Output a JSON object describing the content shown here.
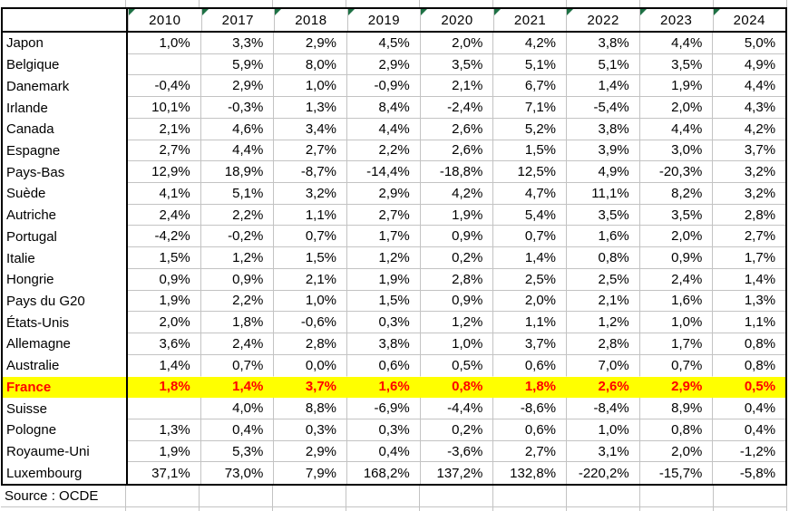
{
  "table": {
    "corner": "",
    "years": [
      "2010",
      "2017",
      "2018",
      "2019",
      "2020",
      "2021",
      "2022",
      "2023",
      "2024"
    ],
    "rows": [
      {
        "country": "Japon",
        "highlight": false,
        "values": [
          "1,0%",
          "3,3%",
          "2,9%",
          "4,5%",
          "2,0%",
          "4,2%",
          "3,8%",
          "4,4%",
          "5,0%"
        ]
      },
      {
        "country": "Belgique",
        "highlight": false,
        "values": [
          "",
          "5,9%",
          "8,0%",
          "2,9%",
          "3,5%",
          "5,1%",
          "5,1%",
          "3,5%",
          "4,9%"
        ]
      },
      {
        "country": "Danemark",
        "highlight": false,
        "values": [
          "-0,4%",
          "2,9%",
          "1,0%",
          "-0,9%",
          "2,1%",
          "6,7%",
          "1,4%",
          "1,9%",
          "4,4%"
        ]
      },
      {
        "country": "Irlande",
        "highlight": false,
        "values": [
          "10,1%",
          "-0,3%",
          "1,3%",
          "8,4%",
          "-2,4%",
          "7,1%",
          "-5,4%",
          "2,0%",
          "4,3%"
        ]
      },
      {
        "country": "Canada",
        "highlight": false,
        "values": [
          "2,1%",
          "4,6%",
          "3,4%",
          "4,4%",
          "2,6%",
          "5,2%",
          "3,8%",
          "4,4%",
          "4,2%"
        ]
      },
      {
        "country": "Espagne",
        "highlight": false,
        "values": [
          "2,7%",
          "4,4%",
          "2,7%",
          "2,2%",
          "2,6%",
          "1,5%",
          "3,9%",
          "3,0%",
          "3,7%"
        ]
      },
      {
        "country": "Pays-Bas",
        "highlight": false,
        "values": [
          "12,9%",
          "18,9%",
          "-8,7%",
          "-14,4%",
          "-18,8%",
          "12,5%",
          "4,9%",
          "-20,3%",
          "3,2%"
        ]
      },
      {
        "country": "Suède",
        "highlight": false,
        "values": [
          "4,1%",
          "5,1%",
          "3,2%",
          "2,9%",
          "4,2%",
          "4,7%",
          "11,1%",
          "8,2%",
          "3,2%"
        ]
      },
      {
        "country": "Autriche",
        "highlight": false,
        "values": [
          "2,4%",
          "2,2%",
          "1,1%",
          "2,7%",
          "1,9%",
          "5,4%",
          "3,5%",
          "3,5%",
          "2,8%"
        ]
      },
      {
        "country": "Portugal",
        "highlight": false,
        "values": [
          "-4,2%",
          "-0,2%",
          "0,7%",
          "1,7%",
          "0,9%",
          "0,7%",
          "1,6%",
          "2,0%",
          "2,7%"
        ]
      },
      {
        "country": "Italie",
        "highlight": false,
        "values": [
          "1,5%",
          "1,2%",
          "1,5%",
          "1,2%",
          "0,2%",
          "1,4%",
          "0,8%",
          "0,9%",
          "1,7%"
        ]
      },
      {
        "country": "Hongrie",
        "highlight": false,
        "values": [
          "0,9%",
          "0,9%",
          "2,1%",
          "1,9%",
          "2,8%",
          "2,5%",
          "2,5%",
          "2,4%",
          "1,4%"
        ]
      },
      {
        "country": "Pays du G20",
        "highlight": false,
        "values": [
          "1,9%",
          "2,2%",
          "1,0%",
          "1,5%",
          "0,9%",
          "2,0%",
          "2,1%",
          "1,6%",
          "1,3%"
        ]
      },
      {
        "country": "États-Unis",
        "highlight": false,
        "values": [
          "2,0%",
          "1,8%",
          "-0,6%",
          "0,3%",
          "1,2%",
          "1,1%",
          "1,2%",
          "1,0%",
          "1,1%"
        ]
      },
      {
        "country": "Allemagne",
        "highlight": false,
        "values": [
          "3,6%",
          "2,4%",
          "2,8%",
          "3,8%",
          "1,0%",
          "3,7%",
          "2,8%",
          "1,7%",
          "0,8%"
        ]
      },
      {
        "country": "Australie",
        "highlight": false,
        "values": [
          "1,4%",
          "0,7%",
          "0,0%",
          "0,6%",
          "0,5%",
          "0,6%",
          "7,0%",
          "0,7%",
          "0,8%"
        ]
      },
      {
        "country": "France",
        "highlight": true,
        "values": [
          "1,8%",
          "1,4%",
          "3,7%",
          "1,6%",
          "0,8%",
          "1,8%",
          "2,6%",
          "2,9%",
          "0,5%"
        ]
      },
      {
        "country": "Suisse",
        "highlight": false,
        "values": [
          "",
          "4,0%",
          "8,8%",
          "-6,9%",
          "-4,4%",
          "-8,6%",
          "-8,4%",
          "8,9%",
          "0,4%"
        ]
      },
      {
        "country": "Pologne",
        "highlight": false,
        "values": [
          "1,3%",
          "0,4%",
          "0,3%",
          "0,3%",
          "0,2%",
          "0,6%",
          "1,0%",
          "0,8%",
          "0,4%"
        ]
      },
      {
        "country": "Royaume-Uni",
        "highlight": false,
        "values": [
          "1,9%",
          "5,3%",
          "2,9%",
          "0,4%",
          "-3,6%",
          "2,7%",
          "3,1%",
          "2,0%",
          "-1,2%"
        ]
      },
      {
        "country": "Luxembourg",
        "highlight": false,
        "values": [
          "37,1%",
          "73,0%",
          "7,9%",
          "168,2%",
          "137,2%",
          "132,8%",
          "-220,2%",
          "-15,7%",
          "-5,8%"
        ]
      }
    ],
    "source": "Source : OCDE",
    "colors": {
      "highlight_bg": "#FFFF00",
      "highlight_text": "#FF0000",
      "triangle_green": "#1E7145",
      "gridline": "#C3C3C3",
      "border": "#000000"
    }
  }
}
